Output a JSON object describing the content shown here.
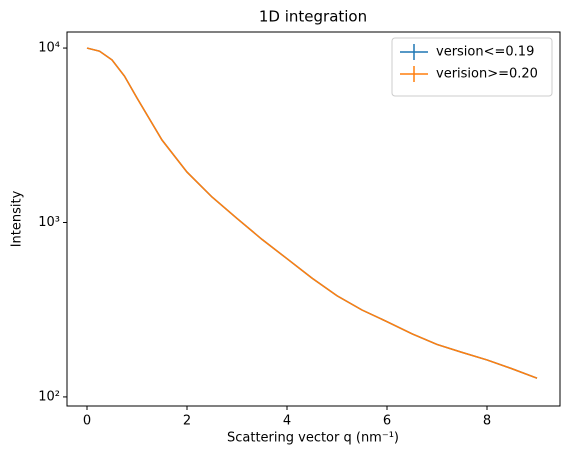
{
  "chart_data": {
    "type": "line",
    "title": "1D integration",
    "xlabel": "Scattering vector q (nm⁻¹)",
    "ylabel": "Intensity",
    "x": [
      0,
      0.25,
      0.5,
      0.75,
      1,
      1.5,
      2,
      2.5,
      3,
      3.5,
      4,
      4.5,
      5,
      5.5,
      6,
      6.5,
      7,
      7.5,
      8,
      8.5,
      9
    ],
    "series": [
      {
        "name": "version<=0.19",
        "color": "#1f77b4",
        "values": [
          10000,
          9600,
          8550,
          6900,
          5170,
          2970,
          1945,
          1400,
          1055,
          800,
          620,
          480,
          380,
          315,
          270,
          230,
          200,
          180,
          163,
          145,
          128
        ]
      },
      {
        "name": "verision>=0.20",
        "color": "#ff7f0e",
        "values": [
          10000,
          9600,
          8550,
          6900,
          5170,
          2970,
          1945,
          1400,
          1055,
          800,
          620,
          480,
          380,
          315,
          270,
          230,
          200,
          180,
          163,
          145,
          128
        ]
      }
    ],
    "xlim": [
      -0.4,
      9.46
    ],
    "xticks": [
      0,
      2,
      4,
      6,
      8
    ],
    "ylim": [
      88.7,
      12360
    ],
    "ylog": true,
    "yticks": [
      {
        "value": 100,
        "label": "10²"
      },
      {
        "value": 1000,
        "label": "10³"
      },
      {
        "value": 10000,
        "label": "10⁴"
      }
    ],
    "legend": "upper right"
  }
}
